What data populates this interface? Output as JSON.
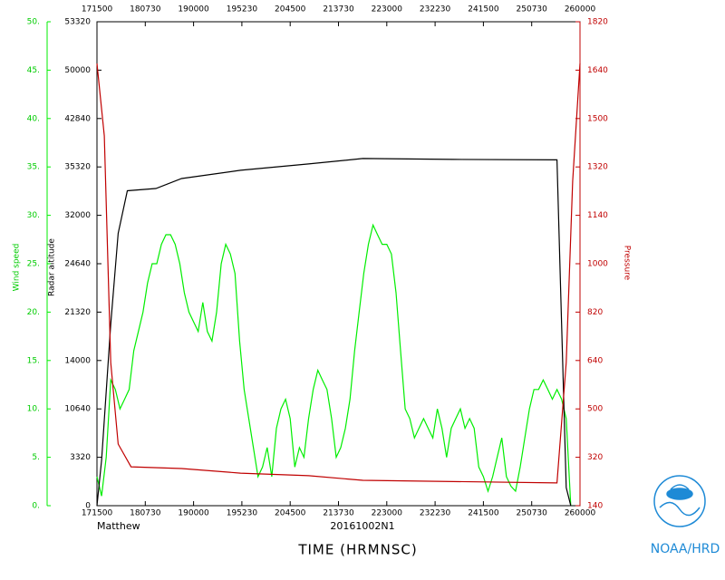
{
  "chart_data": {
    "type": "line",
    "storm": "Matthew",
    "flight": "20161002N1",
    "xlabel": "TIME (HRMNSC)",
    "ylabel": "Wind speed",
    "y2label": "Radar altitude",
    "y3label": "Pressure",
    "credit": "NOAA/HRD",
    "xlim": [
      1035,
      1560
    ],
    "xticks": [
      {
        "value": 1035,
        "label": "171500"
      },
      {
        "value": 1087.5,
        "label": "180730"
      },
      {
        "value": 1140,
        "label": "190000"
      },
      {
        "value": 1192.5,
        "label": "195230"
      },
      {
        "value": 1245,
        "label": "204500"
      },
      {
        "value": 1297.5,
        "label": "213730"
      },
      {
        "value": 1350,
        "label": "223000"
      },
      {
        "value": 1402.5,
        "label": "232230"
      },
      {
        "value": 1455,
        "label": "241500"
      },
      {
        "value": 1507.5,
        "label": "250730"
      },
      {
        "value": 1560,
        "label": "260000"
      }
    ],
    "ylim": [
      0,
      50
    ],
    "yticks": [
      {
        "value": 0,
        "label": "0."
      },
      {
        "value": 5,
        "label": "5."
      },
      {
        "value": 10,
        "label": "10."
      },
      {
        "value": 15,
        "label": "15."
      },
      {
        "value": 20,
        "label": "20."
      },
      {
        "value": 25,
        "label": "25."
      },
      {
        "value": 30,
        "label": "30."
      },
      {
        "value": 35,
        "label": "35."
      },
      {
        "value": 40,
        "label": "40."
      },
      {
        "value": 45,
        "label": "45."
      },
      {
        "value": 50,
        "label": "50."
      }
    ],
    "y2lim": [
      0,
      53320
    ],
    "y2tick_labels": [
      "0",
      "3320",
      "10640",
      "14000",
      "21320",
      "24640",
      "32000",
      "35320",
      "42840",
      "50000",
      "53320"
    ],
    "y3lim": [
      140,
      1820
    ],
    "y3tick_labels": [
      "140",
      "320",
      "500",
      "640",
      "820",
      "1000",
      "1140",
      "1320",
      "1500",
      "1640",
      "1820"
    ],
    "series": [
      {
        "name": "Wind speed",
        "color": "#00ee00",
        "axis": "y",
        "x": [
          1035,
          1040,
          1045,
          1050,
          1055,
          1060,
          1065,
          1070,
          1075,
          1080,
          1085,
          1090,
          1095,
          1100,
          1105,
          1110,
          1115,
          1120,
          1125,
          1130,
          1135,
          1140,
          1145,
          1150,
          1155,
          1160,
          1165,
          1170,
          1175,
          1180,
          1185,
          1190,
          1195,
          1200,
          1205,
          1210,
          1215,
          1220,
          1225,
          1230,
          1235,
          1240,
          1245,
          1250,
          1255,
          1260,
          1265,
          1270,
          1275,
          1280,
          1285,
          1290,
          1295,
          1300,
          1305,
          1310,
          1315,
          1320,
          1325,
          1330,
          1335,
          1340,
          1345,
          1350,
          1355,
          1360,
          1365,
          1370,
          1375,
          1380,
          1385,
          1390,
          1395,
          1400,
          1405,
          1410,
          1415,
          1420,
          1425,
          1430,
          1435,
          1440,
          1445,
          1450,
          1455,
          1460,
          1465,
          1470,
          1475,
          1480,
          1485,
          1490,
          1495,
          1500,
          1505,
          1510,
          1515,
          1520,
          1525,
          1530,
          1535,
          1540,
          1545,
          1550
        ],
        "values": [
          3,
          1,
          5,
          13,
          12,
          10,
          11,
          12,
          16,
          18,
          20,
          23,
          25,
          25,
          27,
          28,
          28,
          27,
          25,
          22,
          20,
          19,
          18,
          21,
          18,
          17,
          20,
          25,
          27,
          26,
          24,
          17,
          12,
          9,
          6,
          3,
          4,
          6,
          3,
          8,
          10,
          11,
          9,
          4,
          6,
          5,
          9,
          12,
          14,
          13,
          12,
          9,
          5,
          6,
          8,
          11,
          16,
          20,
          24,
          27,
          29,
          28,
          27,
          27,
          26,
          22,
          16,
          10,
          9,
          7,
          8,
          9,
          8,
          7,
          10,
          8,
          5,
          8,
          9,
          10,
          8,
          9,
          8,
          4,
          3,
          1.5,
          3,
          5,
          7,
          3,
          2,
          1.5,
          4,
          7,
          10,
          12,
          12,
          13,
          12,
          11,
          12,
          11,
          9,
          0
        ]
      },
      {
        "name": "Radar altitude",
        "color": "#000000",
        "axis": "y2",
        "x": [
          1035,
          1040,
          1050,
          1058,
          1068,
          1099,
          1127,
          1191,
          1265,
          1324,
          1422,
          1535,
          1540,
          1545,
          1550
        ],
        "values": [
          0,
          5000,
          20000,
          30000,
          34700,
          34950,
          36050,
          36950,
          37650,
          38250,
          38150,
          38100,
          20000,
          2000,
          0
        ]
      },
      {
        "name": "Pressure",
        "color": "#c00000",
        "axis": "y3",
        "x": [
          1035,
          1043,
          1050,
          1058,
          1072,
          1127,
          1191,
          1265,
          1324,
          1535,
          1545,
          1552,
          1560
        ],
        "values": [
          1675,
          1424,
          637,
          354,
          275,
          269,
          253,
          244,
          228,
          219,
          637,
          1266,
          1675
        ]
      }
    ]
  }
}
